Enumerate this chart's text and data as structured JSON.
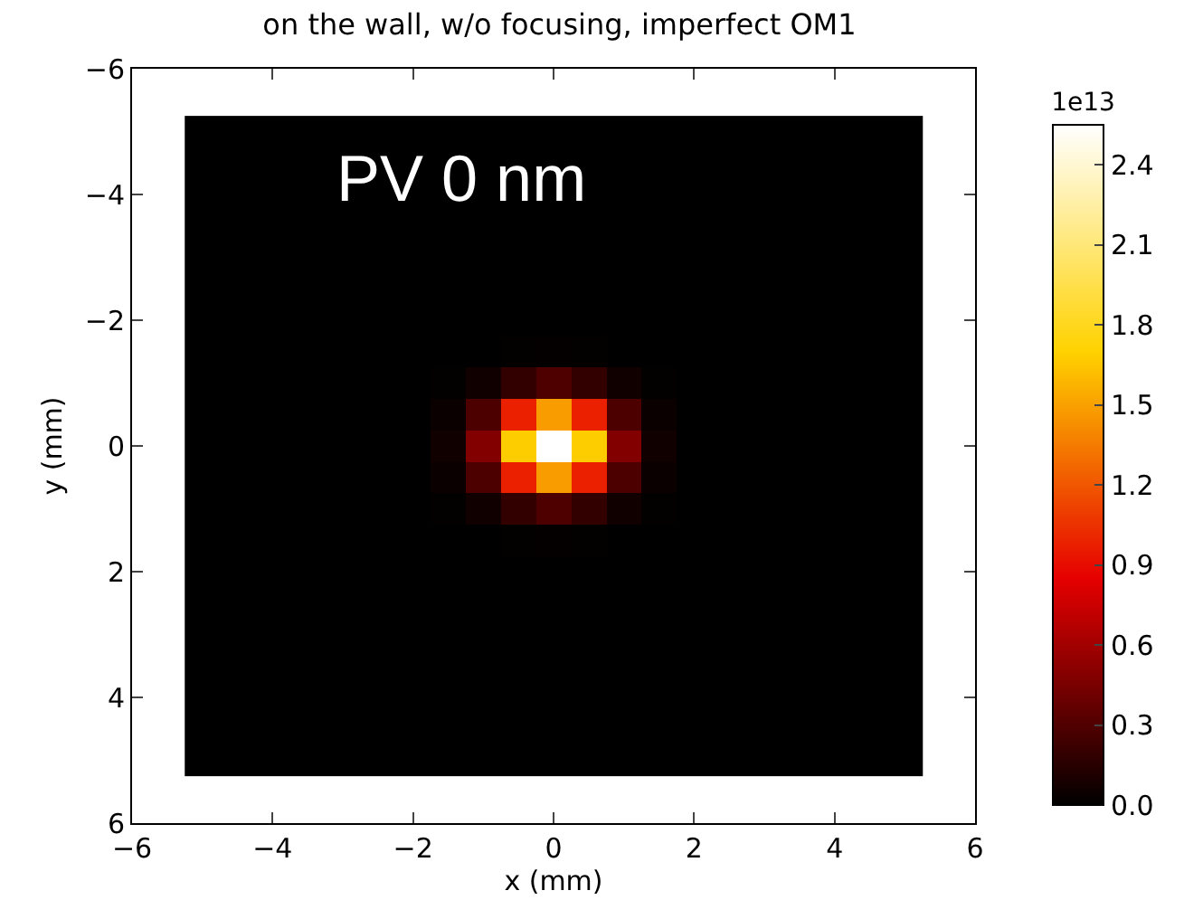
{
  "chart_data": {
    "type": "heatmap",
    "title": "on the wall, w/o focusing, imperfect OM1",
    "xlabel": "x (mm)",
    "ylabel": "y (mm)",
    "clabel": "1e13",
    "annotations": [
      "PV 0 nm"
    ],
    "x": [
      -5,
      -4.5,
      -4,
      -3.5,
      -3,
      -2.5,
      -2,
      -1.5,
      -1,
      -0.5,
      0,
      0.5,
      1,
      1.5,
      2,
      2.5,
      3,
      3.5,
      4,
      4.5,
      5
    ],
    "y": [
      -5,
      -4.5,
      -4,
      -3.5,
      -3,
      -2.5,
      -2,
      -1.5,
      -1,
      -0.5,
      0,
      0.5,
      1,
      1.5,
      2,
      2.5,
      3,
      3.5,
      4,
      4.5,
      5
    ],
    "cells": [
      [
        0,
        0,
        0,
        0,
        0,
        0,
        0,
        0,
        0,
        0,
        0,
        0,
        0,
        0,
        0,
        0,
        0,
        0,
        0,
        0,
        0
      ],
      [
        0,
        0,
        0,
        0,
        0,
        0,
        0,
        0,
        0,
        0,
        0,
        0,
        0,
        0,
        0,
        0,
        0,
        0,
        0,
        0,
        0
      ],
      [
        0,
        0,
        0,
        0,
        0,
        0,
        0,
        0,
        0,
        0,
        0,
        0,
        0,
        0,
        0,
        0,
        0,
        0,
        0,
        0,
        0
      ],
      [
        0,
        0,
        0,
        0,
        0,
        0,
        0,
        0,
        0,
        0,
        0,
        0,
        0,
        0,
        0,
        0,
        0,
        0,
        0,
        0,
        0
      ],
      [
        0,
        0,
        0,
        0,
        0,
        0,
        0,
        0,
        0,
        0,
        0,
        0,
        0,
        0,
        0,
        0,
        0,
        0,
        0,
        0,
        0
      ],
      [
        0,
        0,
        0,
        0,
        0,
        0,
        0,
        0,
        0,
        0,
        0,
        0,
        0,
        0,
        0,
        0,
        0,
        0,
        0,
        0,
        0
      ],
      [
        0,
        0,
        0,
        0,
        0,
        0,
        0,
        0,
        0,
        0,
        0,
        0,
        0,
        0,
        0,
        0,
        0,
        0,
        0,
        0,
        0
      ],
      [
        0,
        0,
        0,
        0,
        0,
        0,
        0,
        0,
        0,
        0.01,
        0.02,
        0.01,
        0,
        0,
        0,
        0,
        0,
        0,
        0,
        0,
        0
      ],
      [
        0,
        0,
        0,
        0,
        0,
        0,
        0,
        0.01,
        0.06,
        0.19,
        0.29,
        0.19,
        0.06,
        0.01,
        0,
        0,
        0,
        0,
        0,
        0,
        0
      ],
      [
        0,
        0,
        0,
        0,
        0,
        0,
        0,
        0.04,
        0.28,
        0.98,
        1.48,
        0.98,
        0.28,
        0.04,
        0,
        0,
        0,
        0,
        0,
        0,
        0
      ],
      [
        0,
        0,
        0,
        0,
        0,
        0,
        0,
        0.06,
        0.48,
        1.68,
        2.55,
        1.68,
        0.48,
        0.06,
        0,
        0,
        0,
        0,
        0,
        0,
        0
      ],
      [
        0,
        0,
        0,
        0,
        0,
        0,
        0,
        0.04,
        0.28,
        0.98,
        1.48,
        0.98,
        0.28,
        0.04,
        0,
        0,
        0,
        0,
        0,
        0,
        0
      ],
      [
        0,
        0,
        0,
        0,
        0,
        0,
        0,
        0.01,
        0.06,
        0.19,
        0.29,
        0.19,
        0.06,
        0.01,
        0,
        0,
        0,
        0,
        0,
        0,
        0
      ],
      [
        0,
        0,
        0,
        0,
        0,
        0,
        0,
        0,
        0,
        0.01,
        0.02,
        0.01,
        0,
        0,
        0,
        0,
        0,
        0,
        0,
        0,
        0
      ],
      [
        0,
        0,
        0,
        0,
        0,
        0,
        0,
        0,
        0,
        0,
        0,
        0,
        0,
        0,
        0,
        0,
        0,
        0,
        0,
        0,
        0
      ],
      [
        0,
        0,
        0,
        0,
        0,
        0,
        0,
        0,
        0,
        0,
        0,
        0,
        0,
        0,
        0,
        0,
        0,
        0,
        0,
        0,
        0
      ],
      [
        0,
        0,
        0,
        0,
        0,
        0,
        0,
        0,
        0,
        0,
        0,
        0,
        0,
        0,
        0,
        0,
        0,
        0,
        0,
        0,
        0
      ],
      [
        0,
        0,
        0,
        0,
        0,
        0,
        0,
        0,
        0,
        0,
        0,
        0,
        0,
        0,
        0,
        0,
        0,
        0,
        0,
        0,
        0
      ],
      [
        0,
        0,
        0,
        0,
        0,
        0,
        0,
        0,
        0,
        0,
        0,
        0,
        0,
        0,
        0,
        0,
        0,
        0,
        0,
        0,
        0
      ],
      [
        0,
        0,
        0,
        0,
        0,
        0,
        0,
        0,
        0,
        0,
        0,
        0,
        0,
        0,
        0,
        0,
        0,
        0,
        0,
        0,
        0
      ],
      [
        0,
        0,
        0,
        0,
        0,
        0,
        0,
        0,
        0,
        0,
        0,
        0,
        0,
        0,
        0,
        0,
        0,
        0,
        0,
        0,
        0
      ]
    ],
    "colors": [
      "#000000",
      "#e60000",
      "#ffd200",
      "#ffffff"
    ],
    "clim": [
      0,
      2.55
    ],
    "cticks": [
      {
        "value": 0,
        "label": "0.0"
      },
      {
        "value": 0.3,
        "label": "0.3"
      },
      {
        "value": 0.6,
        "label": "0.6"
      },
      {
        "value": 0.9,
        "label": "0.9"
      },
      {
        "value": 1.2,
        "label": "1.2"
      },
      {
        "value": 1.5,
        "label": "1.5"
      },
      {
        "value": 1.8,
        "label": "1.8"
      },
      {
        "value": 2.1,
        "label": "2.1"
      },
      {
        "value": 2.4,
        "label": "2.4"
      }
    ],
    "xlim": [
      -6,
      6
    ],
    "ylim": [
      6,
      -6
    ],
    "xticks": [
      {
        "value": -6,
        "label": "−6"
      },
      {
        "value": -4,
        "label": "−4"
      },
      {
        "value": -2,
        "label": "−2"
      },
      0,
      2,
      4,
      6
    ],
    "yticks": [
      {
        "value": -6,
        "label": "−6"
      },
      {
        "value": -4,
        "label": "−4"
      },
      {
        "value": -2,
        "label": "−2"
      },
      0,
      2,
      4,
      6
    ]
  }
}
